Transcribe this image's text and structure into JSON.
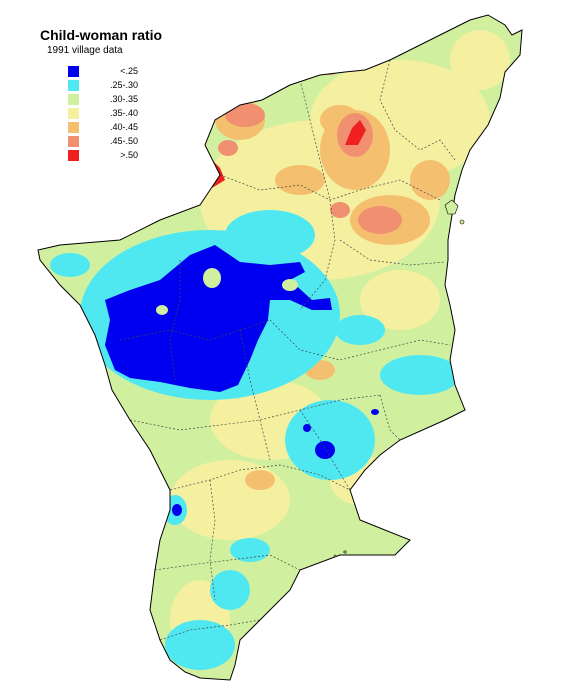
{
  "title": "Child-woman ratio",
  "subtitle": "1991 village data",
  "legend": {
    "items": [
      {
        "label": "<.25",
        "color": "#0000f0"
      },
      {
        "label": ".25-.30",
        "color": "#50e8f0"
      },
      {
        "label": ".30-.35",
        "color": "#d0f0a0"
      },
      {
        "label": ".35-.40",
        "color": "#f4f0a0"
      },
      {
        "label": ".40-.45",
        "color": "#f4c070"
      },
      {
        "label": ".45-.50",
        "color": "#f09070"
      },
      {
        "label": ">.50",
        "color": "#f02020"
      }
    ]
  },
  "colors": {
    "very_low": "#0000f0",
    "low": "#50e8f0",
    "medium_low": "#d0f0a0",
    "medium": "#f4f0a0",
    "medium_high": "#f4c070",
    "high": "#f09070",
    "very_high": "#f02020",
    "outline": "#000000",
    "district_boundary": "#444444"
  }
}
